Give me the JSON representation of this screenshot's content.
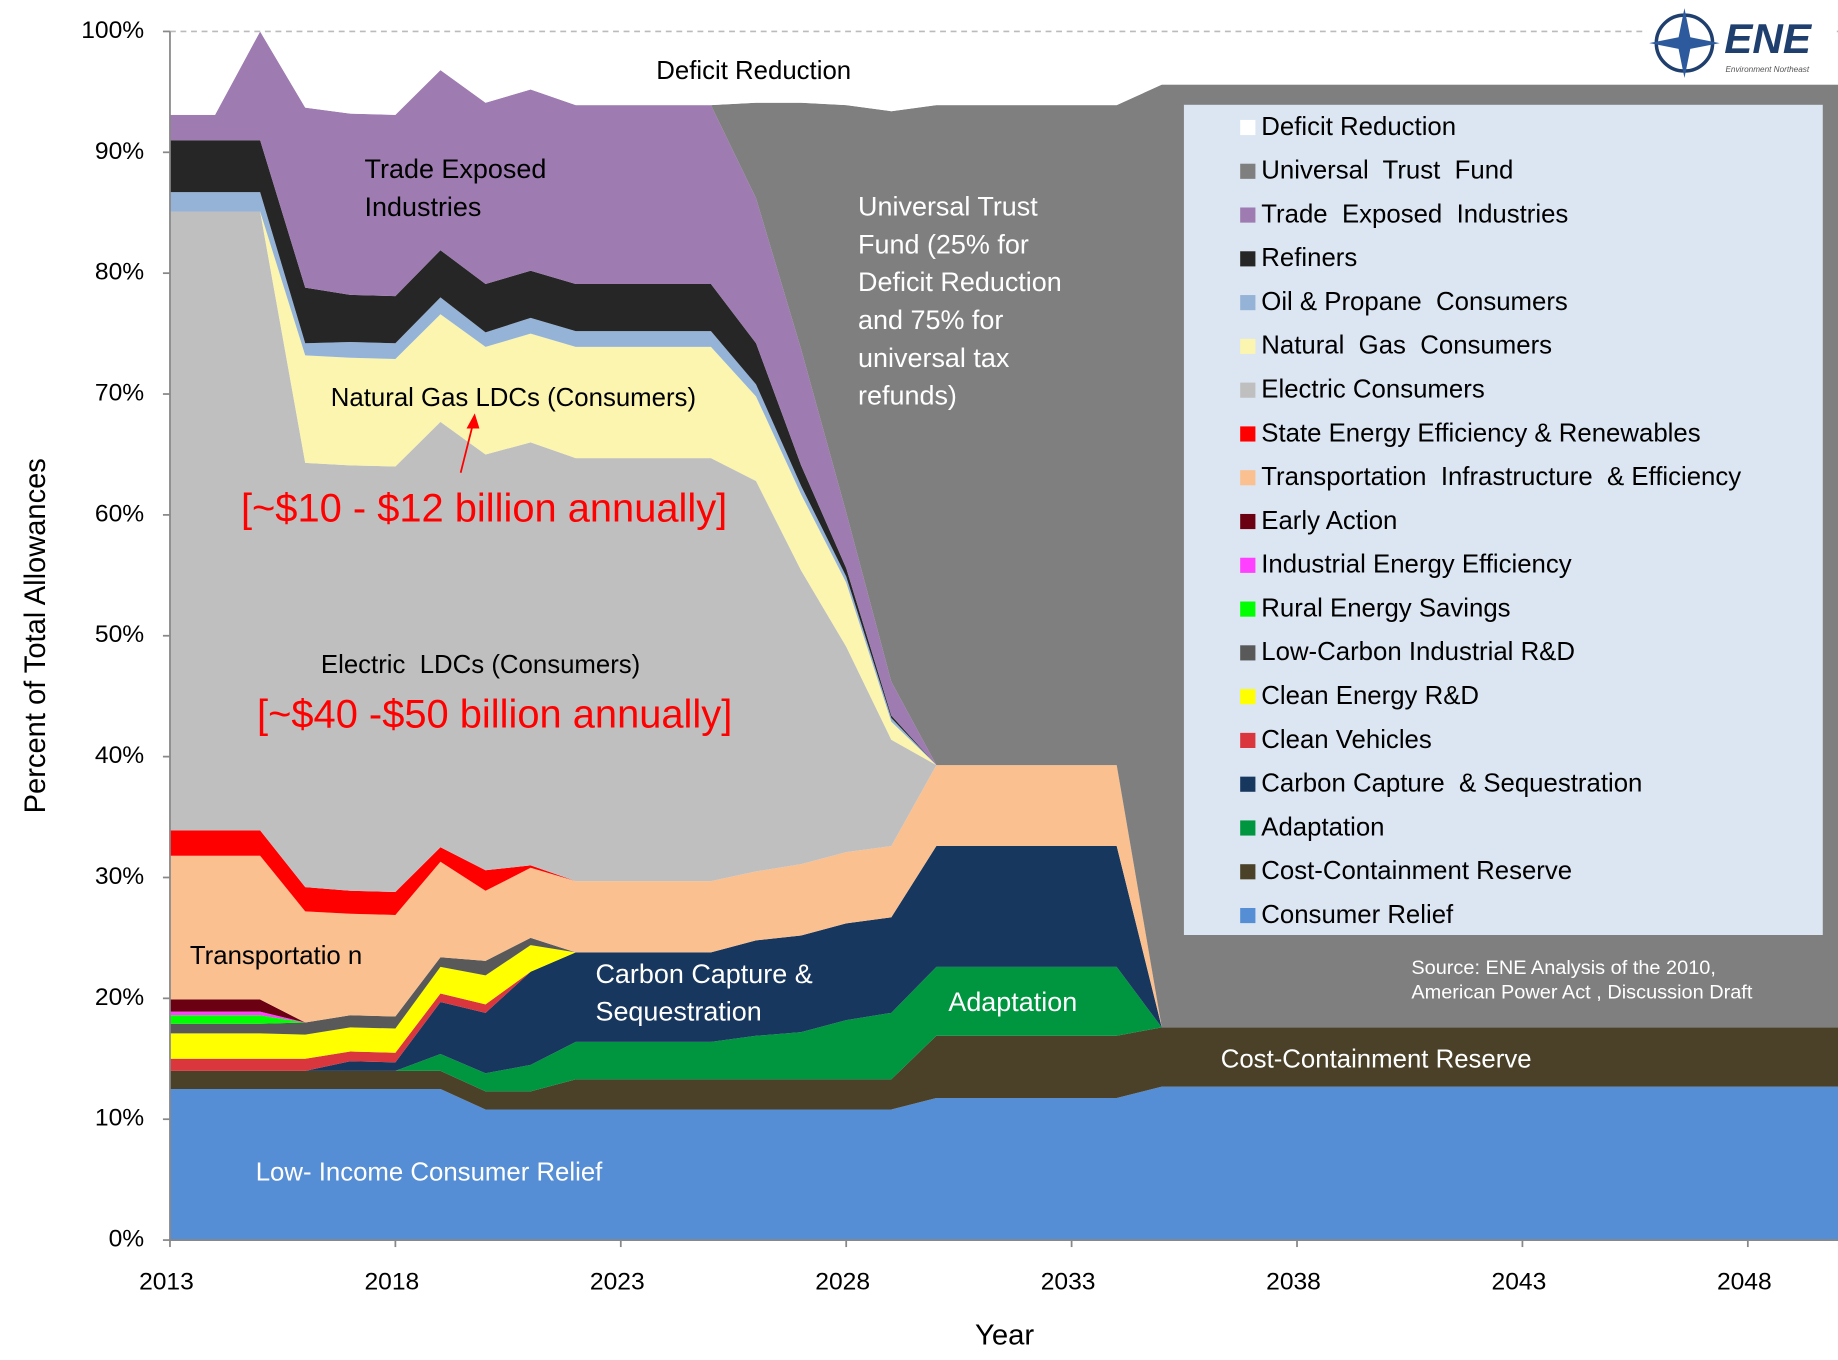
{
  "chart_data": {
    "type": "stacked_area",
    "xlabel": "Year",
    "ylabel": "Percent of Total Allowances",
    "xlim": [
      2013,
      2050
    ],
    "xticks": [
      2013,
      2018,
      2023,
      2028,
      2033,
      2038,
      2043,
      2048
    ],
    "ylim": [
      0,
      100
    ],
    "yticks": [
      {
        "value": 0,
        "label": "0%"
      },
      {
        "value": 10,
        "label": "10%"
      },
      {
        "value": 20,
        "label": "20%"
      },
      {
        "value": 30,
        "label": "30%"
      },
      {
        "value": 40,
        "label": "40%"
      },
      {
        "value": 50,
        "label": "50%"
      },
      {
        "value": 60,
        "label": "60%"
      },
      {
        "value": 70,
        "label": "70%"
      },
      {
        "value": 80,
        "label": "80%"
      },
      {
        "value": 90,
        "label": "90%"
      },
      {
        "value": 100,
        "label": "100%"
      }
    ],
    "legend": "upper right",
    "x": [
      2013,
      2014,
      2015,
      2016,
      2017,
      2018,
      2019,
      2020,
      2021,
      2022,
      2025,
      2026,
      2027,
      2028,
      2029,
      2030,
      2034,
      2035,
      2050
    ],
    "series": [
      {
        "name": "Consumer Relief",
        "color": "#558ed5",
        "values": [
          12.5,
          12.5,
          12.5,
          12.5,
          12.5,
          12.5,
          12.5,
          10.8,
          10.8,
          10.8,
          10.8,
          10.8,
          10.8,
          10.8,
          10.8,
          11.75,
          11.75,
          12.7,
          12.7
        ]
      },
      {
        "name": "Cost-Containment Reserve",
        "color": "#4a4128",
        "values": [
          1.5,
          1.5,
          1.5,
          1.5,
          1.5,
          1.5,
          1.5,
          1.5,
          1.5,
          2.5,
          2.5,
          2.5,
          2.5,
          2.5,
          2.5,
          5.15,
          5.15,
          4.9,
          4.9
        ]
      },
      {
        "name": "Adaptation",
        "color": "#00953f",
        "values": [
          0,
          0,
          0,
          0,
          0,
          0,
          1.4,
          1.5,
          2.2,
          3.1,
          3.1,
          3.6,
          3.9,
          4.9,
          5.5,
          5.7,
          5.7,
          0,
          0
        ]
      },
      {
        "name": "Carbon Capture  & Sequestration",
        "color": "#17375e",
        "values": [
          0,
          0,
          0,
          0,
          0.8,
          0.7,
          4.3,
          5.0,
          7.7,
          7.4,
          7.4,
          7.9,
          8.0,
          8.0,
          7.9,
          10.0,
          10.0,
          0,
          0
        ]
      },
      {
        "name": "Clean Vehicles",
        "color": "#d9363e",
        "values": [
          1,
          1,
          1,
          1,
          0.8,
          0.8,
          0.7,
          0.7,
          0,
          0,
          0,
          0,
          0,
          0,
          0,
          0,
          0,
          0,
          0
        ]
      },
      {
        "name": "Clean Energy R&D",
        "color": "#ffff00",
        "values": [
          2.1,
          2.1,
          2.1,
          2.0,
          2.0,
          2.0,
          2.2,
          2.4,
          2.2,
          0,
          0,
          0,
          0,
          0,
          0,
          0,
          0,
          0,
          0
        ]
      },
      {
        "name": "Low-Carbon Industrial R&D",
        "color": "#595959",
        "values": [
          0.8,
          0.8,
          0.8,
          1.0,
          1.0,
          1.0,
          0.8,
          1.2,
          0.6,
          0,
          0,
          0,
          0,
          0,
          0,
          0,
          0,
          0,
          0
        ]
      },
      {
        "name": "Rural Energy Savings",
        "color": "#00ff00",
        "values": [
          0.7,
          0.7,
          0.7,
          0,
          0,
          0,
          0,
          0,
          0,
          0,
          0,
          0,
          0,
          0,
          0,
          0,
          0,
          0,
          0
        ]
      },
      {
        "name": "Industrial Energy Efficiency",
        "color": "#ff40ff",
        "values": [
          0.3,
          0.3,
          0.3,
          0,
          0,
          0,
          0,
          0,
          0,
          0,
          0,
          0,
          0,
          0,
          0,
          0,
          0,
          0,
          0
        ]
      },
      {
        "name": "Early Action",
        "color": "#6a0012",
        "values": [
          1,
          1,
          1,
          0,
          0,
          0,
          0,
          0,
          0,
          0,
          0,
          0,
          0,
          0,
          0,
          0,
          0,
          0,
          0
        ]
      },
      {
        "name": "Transportation  Infrastructure  & Efficiency",
        "color": "#fac090",
        "values": [
          11.9,
          11.9,
          11.9,
          9.2,
          8.4,
          8.4,
          7.9,
          5.8,
          5.8,
          5.9,
          5.9,
          5.7,
          5.9,
          5.9,
          5.9,
          6.7,
          6.7,
          0,
          0
        ]
      },
      {
        "name": "State Energy Efficiency & Renewables",
        "color": "#ff0000",
        "values": [
          2.1,
          2.1,
          2.1,
          2.0,
          1.9,
          1.9,
          1.2,
          1.7,
          0.2,
          0,
          0,
          0,
          0,
          0,
          0,
          0,
          0,
          0,
          0
        ]
      },
      {
        "name": "Electric Consumers",
        "color": "#bfbfbf",
        "values": [
          51.2,
          51.2,
          51.2,
          35.1,
          35.2,
          35.2,
          35.2,
          34.4,
          35.0,
          35.0,
          35.0,
          32.3,
          24.3,
          17.0,
          8.8,
          0,
          0,
          0,
          0
        ]
      },
      {
        "name": "Natural  Gas  Consumers",
        "color": "#fbf5b0",
        "values": [
          0,
          0,
          0,
          8.9,
          8.9,
          8.9,
          8.9,
          8.9,
          9.0,
          9.2,
          9.2,
          7.0,
          6.3,
          5.3,
          1.5,
          0,
          0,
          0,
          0
        ]
      },
      {
        "name": "Oil & Propane  Consumers",
        "color": "#95b3d7",
        "values": [
          1.6,
          1.6,
          1.6,
          1.0,
          1.3,
          1.3,
          1.4,
          1.2,
          1.3,
          1.3,
          1.3,
          1.0,
          0.7,
          0.5,
          0.3,
          0,
          0,
          0,
          0
        ]
      },
      {
        "name": "Refiners",
        "color": "#262626",
        "values": [
          4.3,
          4.3,
          4.3,
          4.6,
          3.9,
          3.9,
          3.9,
          4.0,
          3.9,
          3.9,
          3.9,
          3.4,
          1.7,
          0.7,
          0.2,
          0,
          0,
          0,
          0
        ]
      },
      {
        "name": "Trade  Exposed  Industries",
        "color": "#9e7bb0",
        "values": [
          2.1,
          2.1,
          9.0,
          14.9,
          15.0,
          15.0,
          14.9,
          15.0,
          15.0,
          14.8,
          14.8,
          12.0,
          9.6,
          4.6,
          2.8,
          0,
          0,
          0,
          0
        ]
      },
      {
        "name": "Universal  Trust  Fund",
        "color": "#7f7f7f",
        "values": [
          0,
          0,
          0,
          0,
          0,
          0,
          0,
          0,
          0,
          0,
          0,
          7.9,
          20.4,
          33.7,
          47.2,
          54.6,
          54.6,
          78.0,
          78.0
        ]
      },
      {
        "name": "Deficit Reduction",
        "color": "#ffffff",
        "values": [
          6.9,
          6.9,
          0,
          6.3,
          6.8,
          6.8,
          3.2,
          5.9,
          4.8,
          6.1,
          6.1,
          5.9,
          5.9,
          6.1,
          6.6,
          6.1,
          6.1,
          4.4,
          4.4
        ]
      }
    ],
    "annotations": [
      {
        "lines": [
          "Deficit Reduction"
        ],
        "color": "#000000"
      },
      {
        "lines": [
          "Trade Exposed",
          "Industries"
        ],
        "color": "#000000"
      },
      {
        "lines": [
          "Universal Trust",
          "Fund (25% for",
          "Deficit Reduction",
          "and 75% for",
          "universal tax",
          "refunds)"
        ],
        "color": "#ffffff"
      },
      {
        "lines": [
          "Natural Gas LDCs (Consumers)"
        ],
        "color": "#000000"
      },
      {
        "lines": [
          "[~$10 - $12 billion annually]"
        ],
        "color": "#ff0000"
      },
      {
        "lines": [
          "Electric  LDCs (Consumers)"
        ],
        "color": "#000000"
      },
      {
        "lines": [
          "[~$40 -$50 billion annually]"
        ],
        "color": "#ff0000"
      },
      {
        "lines": [
          "Transportatio n"
        ],
        "color": "#000000"
      },
      {
        "lines": [
          "Carbon Capture &",
          "Sequestration"
        ],
        "color": "#ffffff"
      },
      {
        "lines": [
          "Adaptation"
        ],
        "color": "#ffffff"
      },
      {
        "lines": [
          "Cost-Containment Reserve"
        ],
        "color": "#ffffff"
      },
      {
        "lines": [
          "Low- Income Consumer Relief"
        ],
        "color": "#ffffff"
      },
      {
        "lines": [
          "Source: ENE Analysis of the 2010,",
          "American Power Act , Discussion Draft"
        ],
        "color": "#ffffff"
      }
    ],
    "logo": {
      "text": "ENE",
      "subtext": "Environment Northeast"
    }
  }
}
